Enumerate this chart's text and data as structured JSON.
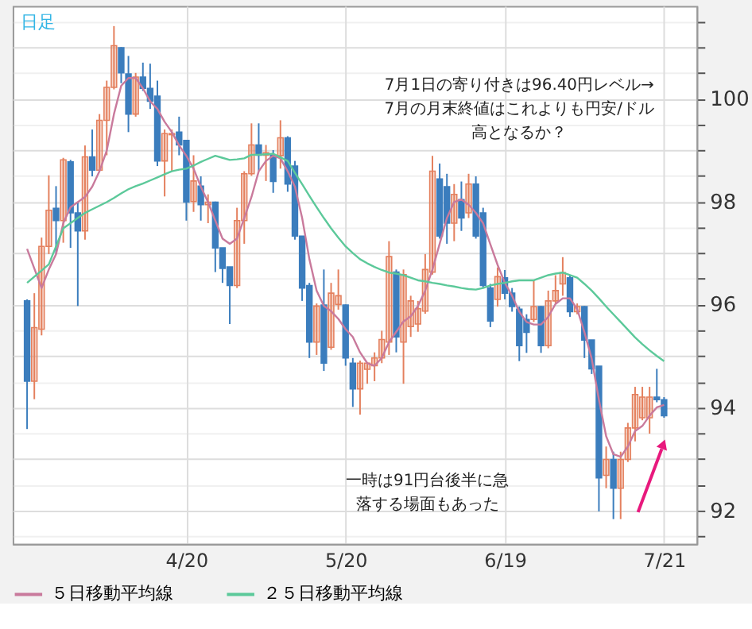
{
  "chart_data": {
    "type": "candlestick",
    "title": "日足",
    "categories": [
      null,
      null,
      null,
      null,
      null,
      null,
      null,
      null,
      null,
      null,
      null,
      null,
      null,
      null,
      null,
      null,
      null,
      null,
      null,
      null,
      null,
      null,
      "4/20",
      null,
      null,
      null,
      null,
      null,
      null,
      null,
      null,
      null,
      null,
      null,
      null,
      null,
      null,
      null,
      null,
      null,
      null,
      null,
      null,
      null,
      "5/20",
      null,
      null,
      null,
      null,
      null,
      null,
      null,
      null,
      null,
      null,
      null,
      null,
      null,
      null,
      null,
      null,
      null,
      null,
      null,
      null,
      null,
      "6/19",
      null,
      null,
      null,
      null,
      null,
      null,
      null,
      null,
      null,
      null,
      null,
      null,
      null,
      null,
      null,
      null,
      null,
      null,
      null,
      null,
      null,
      "7/21"
    ],
    "ohlc": [
      [
        96.07,
        96.1,
        93.58,
        94.51
      ],
      [
        94.51,
        96.22,
        94.16,
        95.55
      ],
      [
        95.52,
        97.3,
        95.4,
        97.13
      ],
      [
        97.13,
        98.51,
        96.98,
        97.83
      ],
      [
        97.87,
        98.3,
        96.98,
        97.63
      ],
      [
        97.63,
        98.85,
        97.2,
        98.81
      ],
      [
        98.77,
        98.81,
        97.1,
        97.78
      ],
      [
        97.78,
        97.99,
        95.97,
        97.43
      ],
      [
        97.43,
        99.09,
        97.26,
        98.87
      ],
      [
        98.87,
        99.4,
        98.49,
        98.61
      ],
      [
        98.61,
        99.7,
        98.6,
        99.58
      ],
      [
        99.58,
        100.35,
        98.9,
        100.22
      ],
      [
        100.22,
        101.41,
        100.18,
        101.03
      ],
      [
        100.99,
        101.0,
        100.3,
        100.5
      ],
      [
        100.48,
        100.83,
        99.35,
        99.7
      ],
      [
        99.7,
        100.5,
        99.65,
        100.42
      ],
      [
        100.42,
        100.7,
        100.15,
        100.2
      ],
      [
        100.2,
        100.68,
        99.8,
        99.95
      ],
      [
        100.05,
        100.35,
        98.69,
        98.79
      ],
      [
        98.79,
        99.4,
        98.1,
        99.32
      ],
      [
        99.3,
        99.4,
        98.6,
        99.32
      ],
      [
        99.35,
        99.65,
        98.9,
        99.1
      ],
      [
        99.19,
        99.2,
        97.63,
        97.99
      ],
      [
        98.0,
        98.9,
        97.8,
        98.4
      ],
      [
        98.3,
        98.49,
        97.63,
        97.94
      ],
      [
        97.94,
        98.14,
        97.58,
        97.99
      ],
      [
        97.99,
        98.0,
        96.63,
        97.1
      ],
      [
        97.1,
        97.1,
        96.42,
        96.7
      ],
      [
        96.73,
        96.73,
        95.62,
        96.37
      ],
      [
        96.37,
        97.88,
        96.32,
        97.63
      ],
      [
        97.63,
        98.59,
        97.18,
        98.54
      ],
      [
        98.54,
        99.52,
        98.5,
        99.1
      ],
      [
        99.1,
        99.52,
        98.6,
        98.9
      ],
      [
        98.9,
        99.1,
        98.4,
        98.95
      ],
      [
        98.9,
        99.0,
        98.17,
        98.39
      ],
      [
        98.89,
        99.58,
        98.64,
        99.24
      ],
      [
        99.24,
        99.27,
        98.19,
        98.34
      ],
      [
        98.69,
        98.79,
        97.26,
        97.33
      ],
      [
        97.33,
        97.33,
        96.07,
        96.32
      ],
      [
        96.37,
        96.42,
        94.96,
        95.27
      ],
      [
        95.27,
        96.02,
        95.02,
        95.97
      ],
      [
        95.99,
        96.68,
        94.71,
        94.86
      ],
      [
        95.17,
        96.42,
        95.12,
        96.22
      ],
      [
        96.0,
        96.68,
        95.9,
        96.17
      ],
      [
        95.99,
        96.0,
        94.81,
        94.96
      ],
      [
        94.86,
        94.96,
        94.01,
        94.36
      ],
      [
        94.36,
        94.91,
        93.86,
        94.86
      ],
      [
        94.74,
        94.88,
        94.46,
        94.86
      ],
      [
        94.81,
        95.07,
        94.51,
        94.96
      ],
      [
        94.96,
        95.49,
        94.86,
        95.32
      ],
      [
        95.27,
        97.23,
        95.02,
        96.93
      ],
      [
        96.63,
        96.68,
        95.07,
        95.37
      ],
      [
        95.27,
        96.68,
        94.46,
        96.58
      ],
      [
        95.57,
        96.17,
        95.37,
        96.07
      ],
      [
        95.62,
        96.07,
        95.47,
        95.92
      ],
      [
        95.87,
        96.98,
        95.82,
        96.68
      ],
      [
        96.63,
        98.89,
        96.58,
        98.59
      ],
      [
        98.44,
        98.74,
        97.28,
        97.33
      ],
      [
        98.29,
        98.54,
        97.18,
        97.58
      ],
      [
        97.58,
        98.34,
        97.23,
        98.14
      ],
      [
        98.04,
        98.39,
        97.43,
        97.68
      ],
      [
        97.78,
        98.54,
        97.68,
        98.34
      ],
      [
        98.34,
        98.49,
        97.28,
        97.33
      ],
      [
        97.78,
        97.88,
        96.32,
        96.37
      ],
      [
        96.32,
        96.4,
        95.56,
        95.68
      ],
      [
        96.1,
        96.72,
        95.96,
        96.54
      ],
      [
        96.52,
        96.67,
        96.1,
        96.22
      ],
      [
        96.22,
        96.32,
        95.86,
        95.96
      ],
      [
        95.91,
        95.96,
        94.9,
        95.2
      ],
      [
        95.71,
        95.81,
        95.06,
        95.46
      ],
      [
        95.71,
        96.47,
        95.66,
        95.96
      ],
      [
        95.96,
        95.97,
        95.06,
        95.2
      ],
      [
        95.2,
        96.27,
        95.15,
        96.07
      ],
      [
        96.07,
        96.57,
        96.02,
        96.27
      ],
      [
        96.4,
        96.92,
        96.17,
        96.62
      ],
      [
        96.52,
        96.57,
        95.76,
        95.86
      ],
      [
        95.86,
        96.02,
        95.81,
        95.96
      ],
      [
        95.96,
        95.97,
        94.96,
        95.31
      ],
      [
        95.31,
        95.31,
        94.65,
        94.75
      ],
      [
        94.8,
        94.8,
        91.98,
        92.63
      ],
      [
        92.68,
        93.24,
        92.43,
        92.99
      ],
      [
        92.99,
        93.14,
        91.83,
        92.43
      ],
      [
        92.43,
        93.14,
        91.83,
        92.99
      ],
      [
        92.99,
        93.7,
        92.94,
        93.6
      ],
      [
        93.6,
        94.4,
        93.34,
        94.25
      ],
      [
        93.8,
        94.4,
        93.75,
        94.2
      ],
      [
        93.8,
        94.4,
        93.49,
        94.2
      ],
      [
        94.2,
        94.75,
        94.1,
        94.15
      ],
      [
        94.15,
        94.2,
        93.8,
        93.84
      ]
    ],
    "colors": [
      "#3b7dbd",
      "#e4805e",
      "#e4805e",
      "#e4805e",
      "#3b7dbd",
      "#e4805e",
      "#3b7dbd",
      "#3b7dbd",
      "#e4805e",
      "#3b7dbd",
      "#e4805e",
      "#e4805e",
      "#e4805e",
      "#3b7dbd",
      "#3b7dbd",
      "#e4805e",
      "#3b7dbd",
      "#3b7dbd",
      "#3b7dbd",
      "#e4805e",
      "#e4805e",
      "#3b7dbd",
      "#3b7dbd",
      "#e4805e",
      "#3b7dbd",
      "#e4805e",
      "#3b7dbd",
      "#3b7dbd",
      "#3b7dbd",
      "#e4805e",
      "#e4805e",
      "#e4805e",
      "#3b7dbd",
      "#e4805e",
      "#3b7dbd",
      "#e4805e",
      "#3b7dbd",
      "#3b7dbd",
      "#3b7dbd",
      "#3b7dbd",
      "#e4805e",
      "#3b7dbd",
      "#e4805e",
      "#e4805e",
      "#3b7dbd",
      "#3b7dbd",
      "#e4805e",
      "#e4805e",
      "#e4805e",
      "#e4805e",
      "#e4805e",
      "#3b7dbd",
      "#e4805e",
      "#e4805e",
      "#e4805e",
      "#e4805e",
      "#e4805e",
      "#3b7dbd",
      "#3b7dbd",
      "#e4805e",
      "#3b7dbd",
      "#e4805e",
      "#3b7dbd",
      "#3b7dbd",
      "#3b7dbd",
      "#e4805e",
      "#3b7dbd",
      "#3b7dbd",
      "#3b7dbd",
      "#3b7dbd",
      "#e4805e",
      "#3b7dbd",
      "#e4805e",
      "#e4805e",
      "#e4805e",
      "#3b7dbd",
      "#e4805e",
      "#3b7dbd",
      "#3b7dbd",
      "#3b7dbd",
      "#e4805e",
      "#3b7dbd",
      "#e4805e",
      "#e4805e",
      "#e4805e",
      "#e4805e",
      "#e4805e",
      "#3b7dbd",
      "#3b7dbd"
    ],
    "series": [
      {
        "name": "５日移動平均線",
        "type": "line",
        "color": "#c97a9c",
        "values": [
          97.08,
          96.7,
          96.32,
          96.68,
          96.98,
          97.58,
          97.89,
          97.99,
          98.09,
          98.29,
          98.59,
          98.99,
          99.7,
          100.25,
          100.4,
          100.4,
          100.2,
          99.95,
          99.8,
          99.55,
          99.35,
          99.09,
          98.89,
          98.64,
          98.29,
          97.99,
          97.63,
          97.28,
          97.18,
          97.28,
          97.68,
          98.09,
          98.59,
          98.79,
          98.89,
          98.84,
          98.59,
          98.29,
          97.68,
          96.88,
          96.27,
          95.97,
          95.87,
          95.72,
          95.52,
          95.37,
          95.07,
          94.86,
          94.81,
          94.96,
          95.27,
          95.47,
          95.67,
          95.77,
          95.97,
          96.27,
          96.68,
          97.18,
          97.68,
          97.99,
          98.04,
          97.94,
          97.78,
          97.58,
          97.17,
          96.77,
          96.42,
          96.17,
          95.86,
          95.66,
          95.61,
          95.61,
          95.76,
          96.01,
          96.12,
          96.12,
          95.91,
          95.46,
          94.95,
          94.15,
          93.44,
          93.09,
          93.04,
          93.24,
          93.54,
          93.64,
          93.84,
          94.0,
          94.05
        ]
      },
      {
        "name": "２５日移動平均線",
        "type": "line",
        "color": "#5cc99a",
        "values": [
          96.42,
          96.54,
          96.66,
          96.78,
          97.13,
          97.48,
          97.58,
          97.68,
          97.78,
          97.85,
          97.92,
          97.99,
          98.07,
          98.16,
          98.24,
          98.3,
          98.35,
          98.41,
          98.47,
          98.53,
          98.59,
          98.62,
          98.64,
          98.7,
          98.77,
          98.83,
          98.89,
          98.85,
          98.81,
          98.82,
          98.84,
          98.91,
          98.91,
          98.92,
          98.93,
          98.86,
          98.79,
          98.56,
          98.34,
          98.11,
          97.89,
          97.68,
          97.48,
          97.3,
          97.13,
          97.0,
          96.88,
          96.8,
          96.73,
          96.67,
          96.62,
          96.6,
          96.57,
          96.52,
          96.47,
          96.45,
          96.42,
          96.4,
          96.37,
          96.35,
          96.32,
          96.3,
          96.29,
          96.32,
          96.37,
          96.4,
          96.42,
          96.45,
          96.47,
          96.47,
          96.47,
          96.52,
          96.57,
          96.6,
          96.62,
          96.57,
          96.52,
          96.4,
          96.27,
          96.12,
          95.96,
          95.81,
          95.66,
          95.51,
          95.36,
          95.23,
          95.11,
          95.0,
          94.9
        ]
      }
    ],
    "ylim": [
      91.35,
      101.8
    ],
    "yticks": [
      {
        "value": 91.5,
        "label": null
      },
      92,
      {
        "value": 92.5,
        "label": null
      },
      {
        "value": 93,
        "label": null
      },
      {
        "value": 93.5,
        "label": null
      },
      94,
      {
        "value": 94.5,
        "label": null
      },
      {
        "value": 95,
        "label": null
      },
      {
        "value": 95.5,
        "label": null
      },
      96,
      {
        "value": 96.5,
        "label": null
      },
      {
        "value": 97,
        "label": null
      },
      {
        "value": 97.5,
        "label": null
      },
      98,
      {
        "value": 98.5,
        "label": null
      },
      {
        "value": 99,
        "label": null
      },
      {
        "value": 99.5,
        "label": null
      },
      100,
      {
        "value": 100.5,
        "label": null
      },
      {
        "value": 101,
        "label": null
      },
      {
        "value": 101.5,
        "label": null
      }
    ],
    "grid": true,
    "legend": "bottom",
    "annotations": [
      "7月1日の寄り付きは96.40円レベル→7月の月末終値はこれよりも円安/ドル高となるか？",
      "一時は91円台後半に急落する場面もあった"
    ]
  }
}
